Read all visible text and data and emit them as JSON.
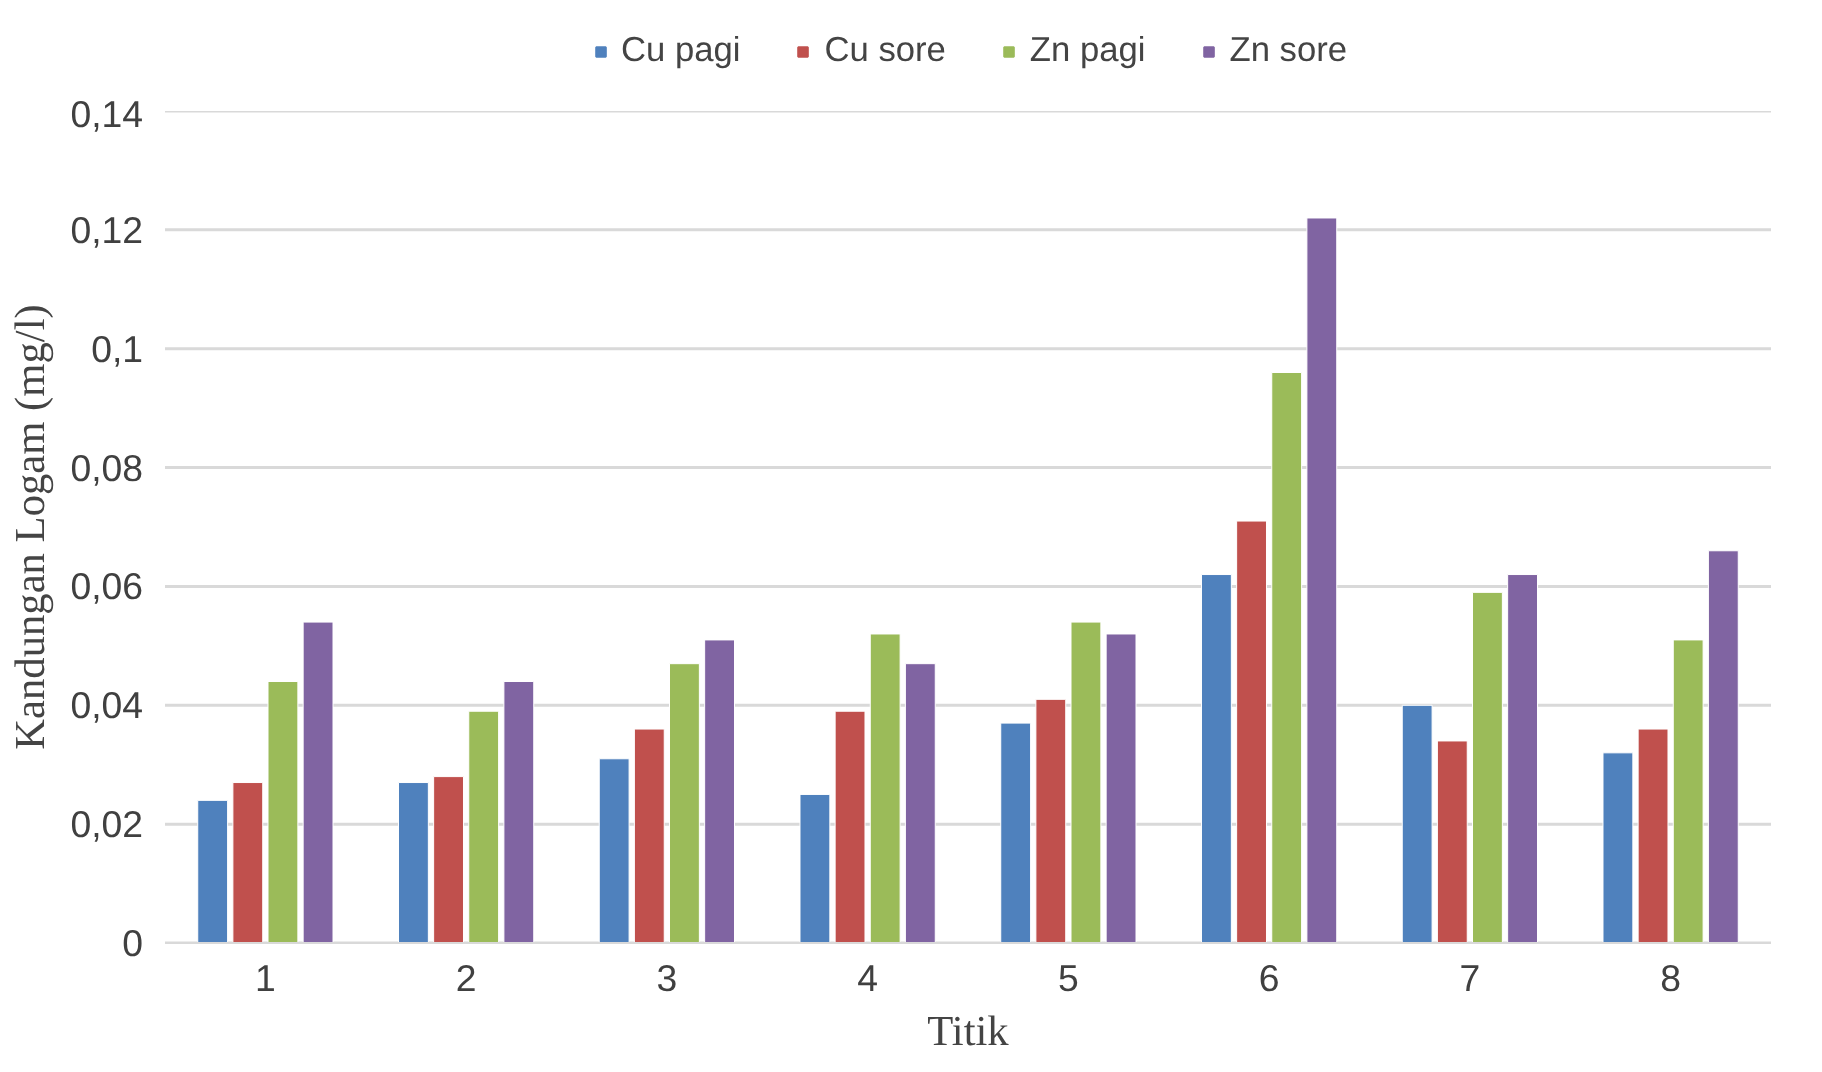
{
  "chart_data": {
    "type": "bar",
    "xlabel": "Titik",
    "ylabel": "Kandungan Logam (mg/l)",
    "categories": [
      "1",
      "2",
      "3",
      "4",
      "5",
      "6",
      "7",
      "8"
    ],
    "series": [
      {
        "name": "Cu pagi",
        "color": "#4f81bd",
        "values": [
          0.024,
          0.027,
          0.031,
          0.025,
          0.037,
          0.062,
          0.04,
          0.032
        ]
      },
      {
        "name": "Cu sore",
        "color": "#c0504d",
        "values": [
          0.027,
          0.028,
          0.036,
          0.039,
          0.041,
          0.071,
          0.034,
          0.036
        ]
      },
      {
        "name": "Zn pagi",
        "color": "#9bbb59",
        "values": [
          0.044,
          0.039,
          0.047,
          0.052,
          0.054,
          0.096,
          0.059,
          0.051
        ]
      },
      {
        "name": "Zn sore",
        "color": "#8064a2",
        "values": [
          0.054,
          0.044,
          0.051,
          0.047,
          0.052,
          0.122,
          0.062,
          0.066
        ]
      }
    ],
    "ylim": [
      0,
      0.14
    ],
    "yticks": [
      0,
      {
        "value": 0.02,
        "label": "0,02"
      },
      {
        "value": 0.04,
        "label": "0,04"
      },
      {
        "value": 0.06,
        "label": "0,06"
      },
      {
        "value": 0.08,
        "label": "0,08"
      },
      {
        "value": 0.1,
        "label": "0,1"
      },
      {
        "value": 0.12,
        "label": "0,12"
      },
      {
        "value": 0.14,
        "label": "0,14"
      }
    ],
    "grid": "y",
    "legend": "top"
  }
}
